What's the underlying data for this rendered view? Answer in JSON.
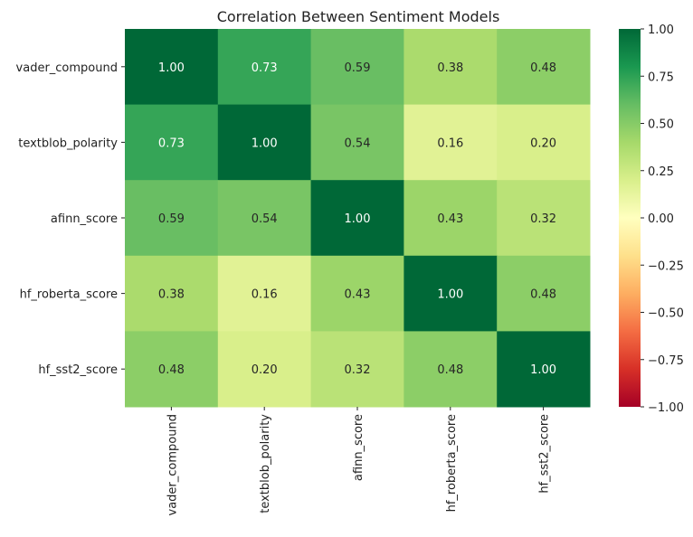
{
  "chart_data": {
    "type": "heatmap",
    "title": "Correlation Between Sentiment Models",
    "xlabel": "",
    "ylabel": "",
    "categories_x": [
      "vader_compound",
      "textblob_polarity",
      "afinn_score",
      "hf_roberta_score",
      "hf_sst2_score"
    ],
    "categories_y": [
      "vader_compound",
      "textblob_polarity",
      "afinn_score",
      "hf_roberta_score",
      "hf_sst2_score"
    ],
    "values": [
      [
        1.0,
        0.73,
        0.59,
        0.38,
        0.48
      ],
      [
        0.73,
        1.0,
        0.54,
        0.16,
        0.2
      ],
      [
        0.59,
        0.54,
        1.0,
        0.43,
        0.32
      ],
      [
        0.38,
        0.16,
        0.43,
        1.0,
        0.48
      ],
      [
        0.48,
        0.2,
        0.32,
        0.48,
        1.0
      ]
    ],
    "value_format": "0.00",
    "colormap": "RdYlGn",
    "vmin": -1.0,
    "vmax": 1.0,
    "colorbar": {
      "ticks": [
        1.0,
        0.75,
        0.5,
        0.25,
        0.0,
        -0.25,
        -0.5,
        -0.75,
        -1.0
      ],
      "tick_labels": [
        "1.00",
        "0.75",
        "0.50",
        "0.25",
        "0.00",
        "−0.25",
        "−0.50",
        "−0.75",
        "−1.00"
      ]
    },
    "grid": false,
    "legend": "colorbar-right"
  }
}
